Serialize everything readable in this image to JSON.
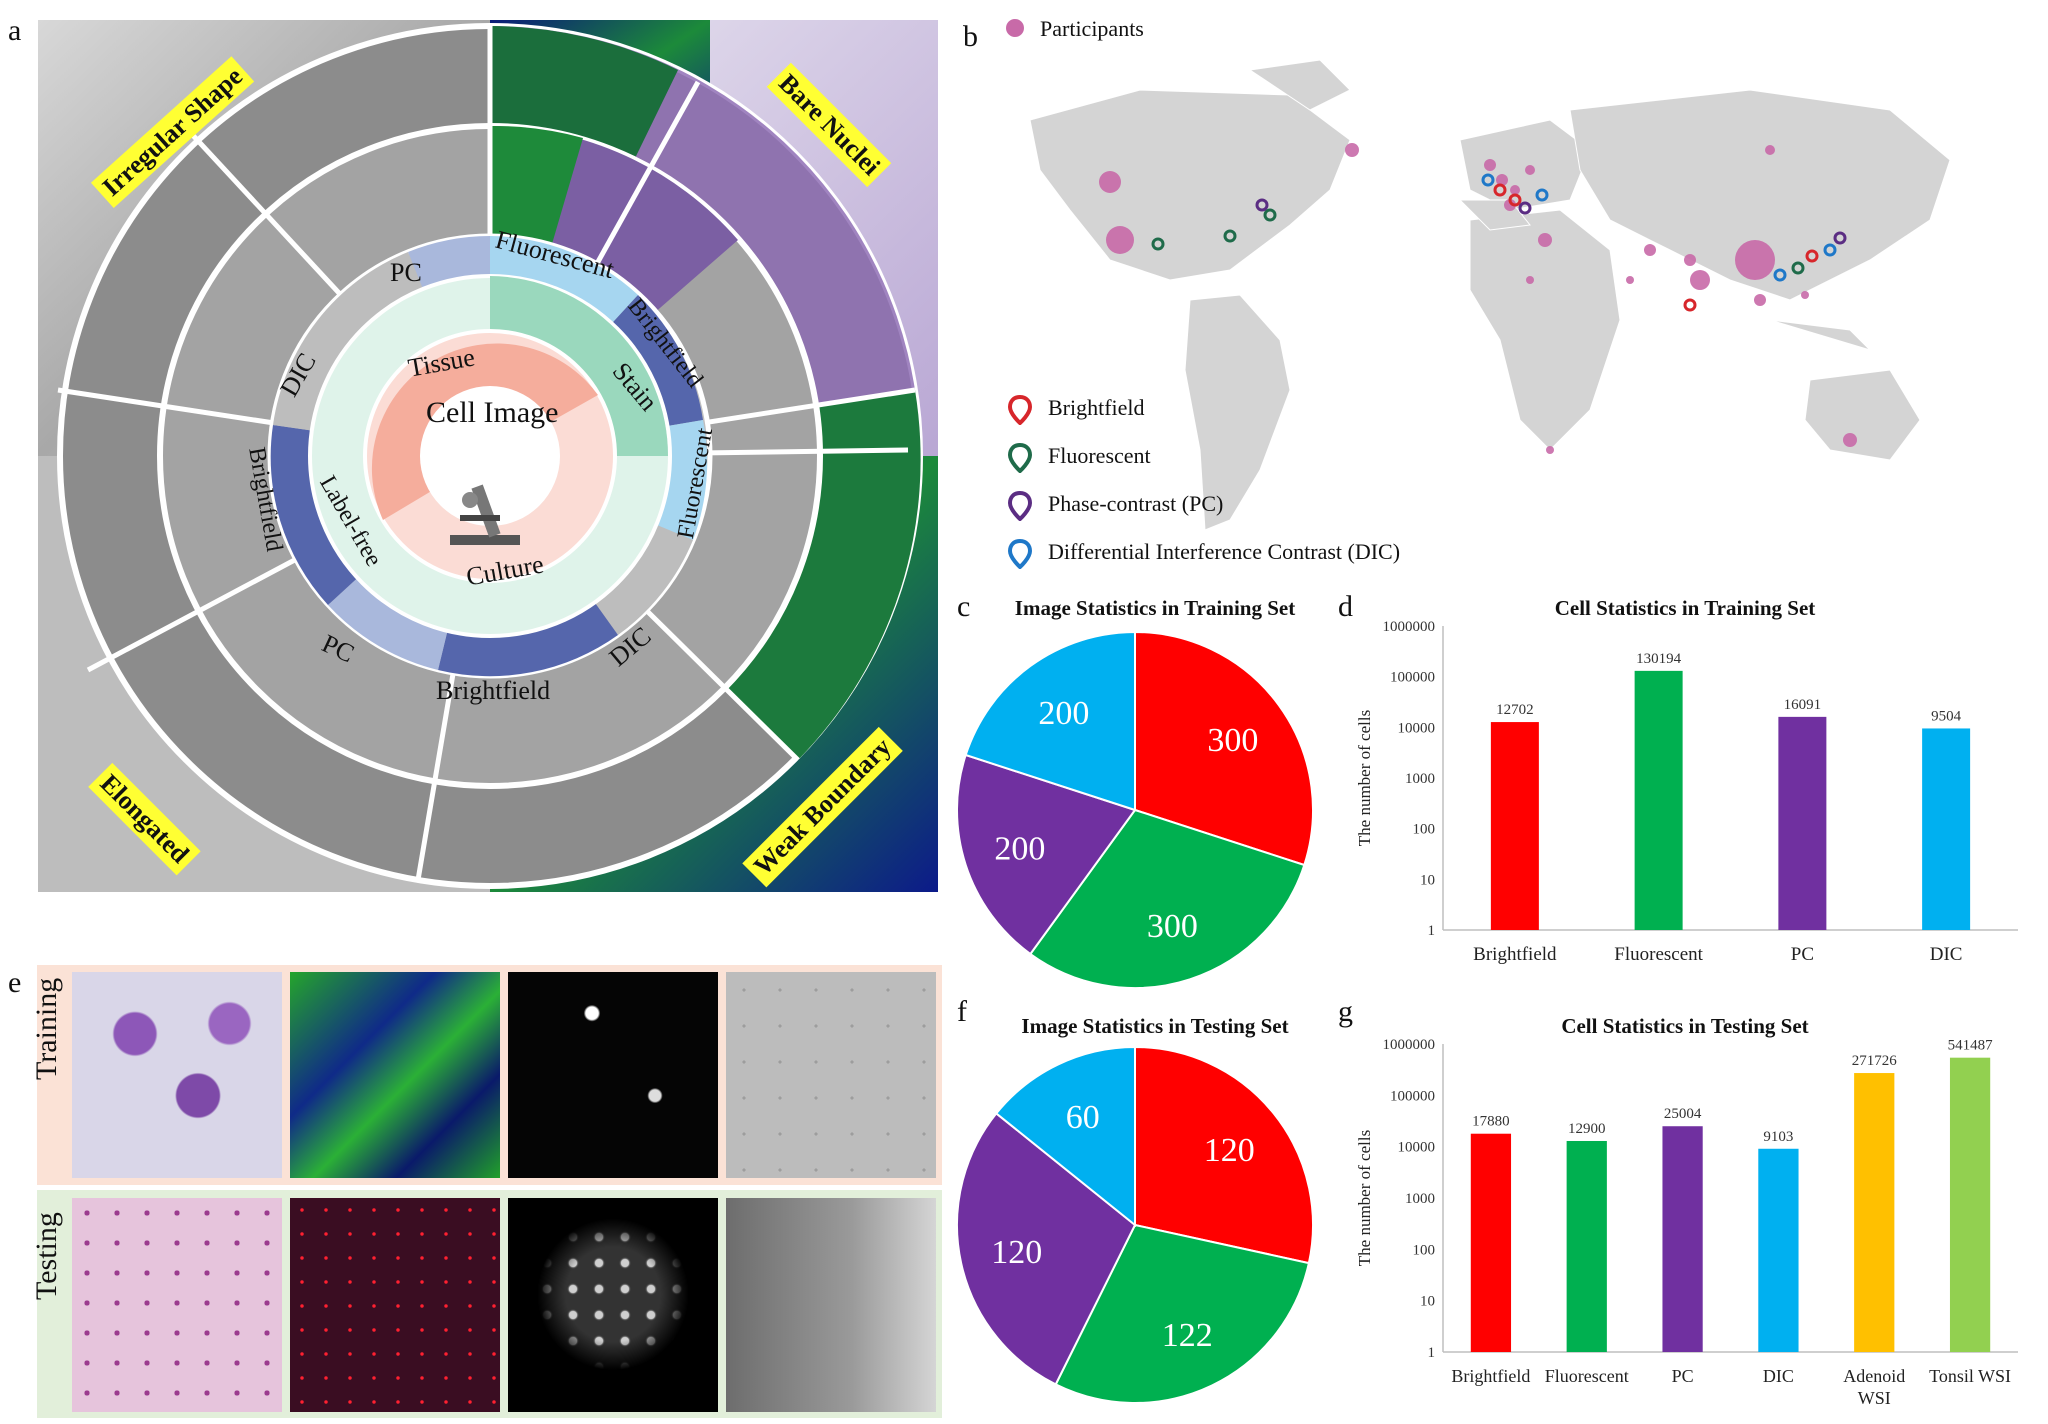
{
  "panels": {
    "a": "a",
    "b": "b",
    "c": "c",
    "d": "d",
    "e": "e",
    "f": "f",
    "g": "g"
  },
  "wheel": {
    "center": "Cell Image",
    "inner": [
      "Tissue",
      "Stain",
      "Culture",
      "Label-free"
    ],
    "modalities_ring": [
      "PC",
      "Fluorescent",
      "Brightfield",
      "Fluorescent",
      "DIC",
      "Brightfield",
      "PC",
      "Brightfield",
      "DIC"
    ],
    "tags": [
      "Irregular Shape",
      "Bare Nuclei",
      "Weak Boundary",
      "Elongated"
    ]
  },
  "map": {
    "legend_participants": "Participants",
    "legend_markers": [
      {
        "label": "Brightfield",
        "color": "#d7262b"
      },
      {
        "label": "Fluorescent",
        "color": "#1f6b4a"
      },
      {
        "label": "Phase-contrast (PC)",
        "color": "#5b2d83"
      },
      {
        "label": "Differential Interference Contrast (DIC)",
        "color": "#1f78c8"
      }
    ],
    "participant_color": "#c86aa8"
  },
  "samples": {
    "training_label": "Training",
    "testing_label": "Testing"
  },
  "chart_data": [
    {
      "id": "c",
      "type": "pie",
      "title": "Image Statistics in Training Set",
      "categories": [
        "Brightfield",
        "Fluorescent",
        "PC",
        "DIC"
      ],
      "values": [
        300,
        300,
        200,
        200
      ],
      "colors": [
        "#ff0000",
        "#00b050",
        "#7030a0",
        "#00b0f0"
      ]
    },
    {
      "id": "d",
      "type": "bar",
      "title": "Cell Statistics in Training Set",
      "ylabel": "The number of cells",
      "yscale": "log",
      "ylim": [
        1,
        1000000
      ],
      "yticks": [
        "1",
        "10",
        "100",
        "1000",
        "10000",
        "100000",
        "1000000"
      ],
      "categories": [
        "Brightfield",
        "Fluorescent",
        "PC",
        "DIC"
      ],
      "values": [
        12702,
        130194,
        16091,
        9504
      ],
      "colors": [
        "#ff0000",
        "#00b050",
        "#7030a0",
        "#00b0f0"
      ]
    },
    {
      "id": "f",
      "type": "pie",
      "title": "Image Statistics in Testing Set",
      "categories": [
        "Brightfield",
        "Fluorescent",
        "PC",
        "DIC"
      ],
      "values": [
        120,
        122,
        120,
        60
      ],
      "colors": [
        "#ff0000",
        "#00b050",
        "#7030a0",
        "#00b0f0"
      ]
    },
    {
      "id": "g",
      "type": "bar",
      "title": "Cell Statistics in Testing Set",
      "ylabel": "The number of cells",
      "yscale": "log",
      "ylim": [
        1,
        1000000
      ],
      "yticks": [
        "1",
        "10",
        "100",
        "1000",
        "10000",
        "100000",
        "1000000"
      ],
      "categories": [
        "Brightfield",
        "Fluorescent",
        "PC",
        "DIC",
        "Adenoid WSI",
        "Tonsil WSI"
      ],
      "values": [
        17880,
        12900,
        25004,
        9103,
        271726,
        541487
      ],
      "colors": [
        "#ff0000",
        "#00b050",
        "#7030a0",
        "#00b0f0",
        "#ffc000",
        "#92d050"
      ]
    }
  ]
}
